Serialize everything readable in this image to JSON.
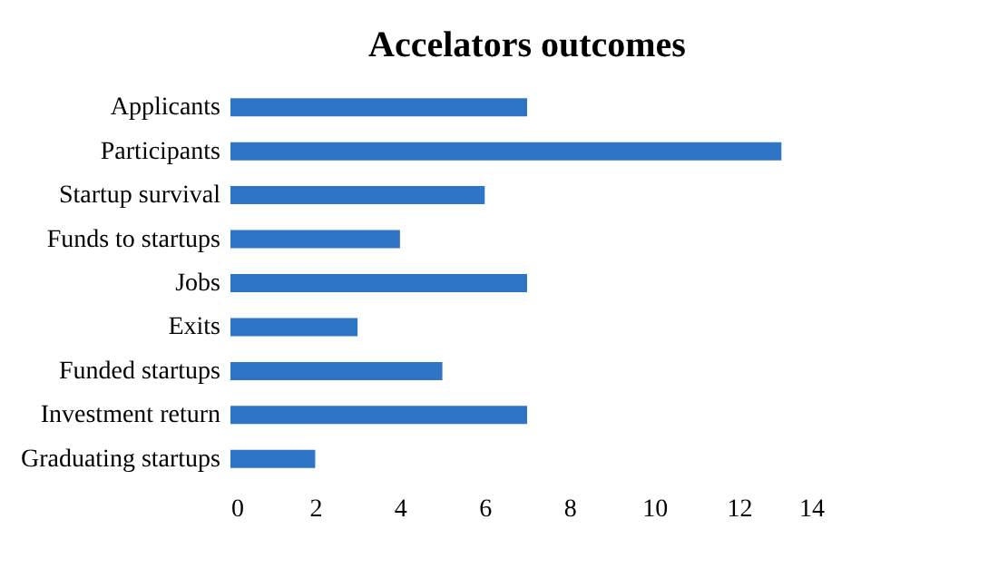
{
  "chart_data": {
    "type": "bar",
    "orientation": "horizontal",
    "title": "Accelators outcomes",
    "categories": [
      "Applicants",
      "Participants",
      "Startup survival",
      "Funds to startups",
      "Jobs",
      "Exits",
      "Funded startups",
      "Investment return",
      "Graduating startups"
    ],
    "values": [
      7,
      13,
      6,
      4,
      7,
      3,
      5,
      7,
      2
    ],
    "color": "#2e75c6",
    "xlim": [
      0,
      14
    ],
    "xticks": [
      0,
      2,
      4,
      6,
      8,
      10,
      12,
      14
    ],
    "grid": false
  }
}
